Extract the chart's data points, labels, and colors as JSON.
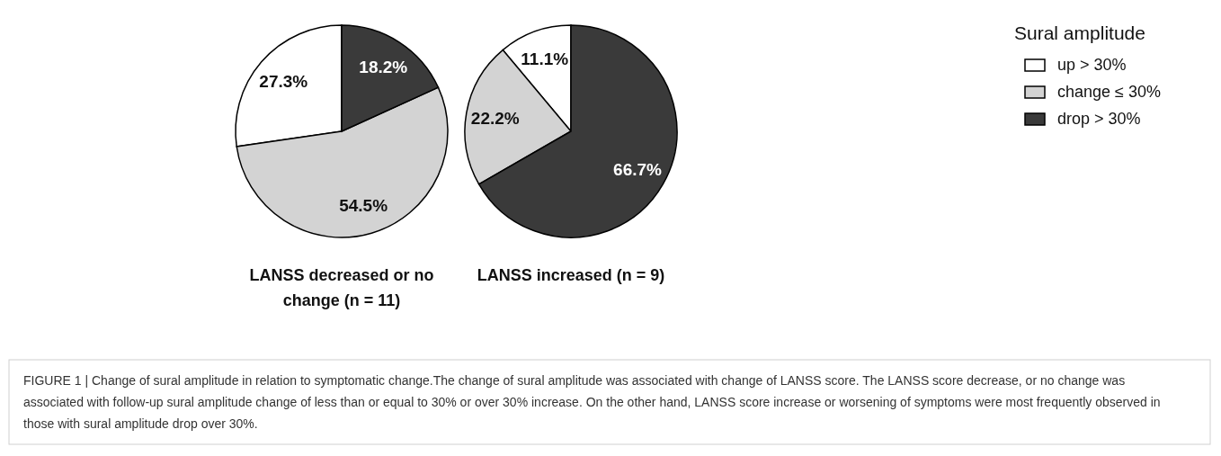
{
  "chart_data": [
    {
      "type": "pie",
      "title": "LANSS decreased or no change (n = 11)",
      "categories": [
        "up > 30%",
        "change ≤ 30%",
        "drop > 30%"
      ],
      "values": [
        27.3,
        54.5,
        18.2
      ],
      "colors": [
        "#ffffff",
        "#d3d3d3",
        "#3a3a3a"
      ],
      "value_labels": [
        "27.3%",
        "54.5%",
        "18.2%"
      ],
      "legend": "right",
      "legend_title": "Sural amplitude",
      "annotations": [
        "FIGURE 1 | Change of sural amplitude in relation to symptomatic change.The change of sural amplitude was associated with change of LANSS score. The LANSS score decrease, or no change was associated with follow-up sural amplitude change of less than or equal to 30% or over 30% increase. On the other hand, LANSS score increase or worsening of symptoms were most frequently observed in those with sural amplitude drop over 30%."
      ]
    },
    {
      "type": "pie",
      "title": "LANSS increased (n = 9)",
      "categories": [
        null,
        null,
        null
      ],
      "values": [
        11.1,
        22.2,
        66.7
      ],
      "colors": [
        "#ffffff",
        "#d3d3d3",
        "#3a3a3a"
      ],
      "value_labels": [
        "11.1%",
        "22.2%",
        "66.7%"
      ]
    }
  ]
}
